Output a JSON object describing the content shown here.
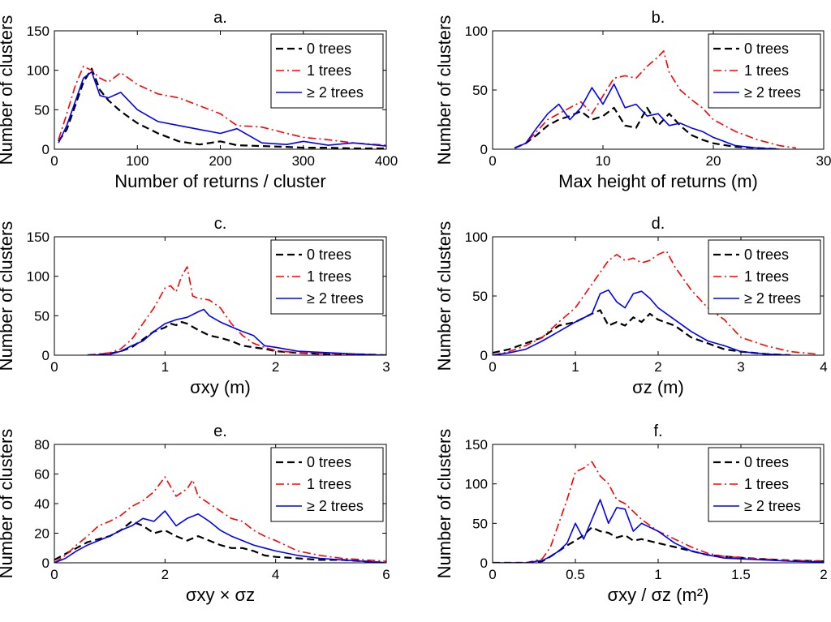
{
  "legend_labels": [
    "0 trees",
    "1 trees",
    "≥ 2 trees"
  ],
  "series_colors": {
    "zero": "#000000",
    "one": "#ff0000",
    "two": "#0000ff"
  },
  "chart_data": [
    {
      "type": "line",
      "title": "a.",
      "xlabel": "Number of returns / cluster",
      "ylabel": "Number of clusters",
      "xlim": [
        0,
        400
      ],
      "ylim": [
        0,
        150
      ],
      "xticks": [
        0,
        100,
        200,
        300,
        400
      ],
      "yticks": [
        0,
        50,
        100,
        150
      ],
      "xticklabels": [
        "0",
        "100",
        "200",
        "300",
        "400"
      ],
      "yticklabels": [
        "0",
        "50",
        "100",
        "150"
      ],
      "series": [
        {
          "name": "0 trees",
          "x": [
            5,
            15,
            25,
            35,
            45,
            55,
            65,
            80,
            100,
            125,
            150,
            175,
            200,
            220,
            250,
            280,
            300,
            330,
            360,
            400
          ],
          "values": [
            10,
            25,
            55,
            85,
            102,
            75,
            62,
            48,
            33,
            20,
            10,
            6,
            10,
            5,
            4,
            3,
            2,
            2,
            1,
            1
          ]
        },
        {
          "name": "1 trees",
          "x": [
            5,
            15,
            25,
            35,
            45,
            55,
            65,
            80,
            100,
            125,
            150,
            175,
            200,
            220,
            250,
            280,
            300,
            330,
            360,
            400
          ],
          "values": [
            12,
            45,
            80,
            105,
            100,
            90,
            85,
            97,
            82,
            70,
            65,
            55,
            45,
            30,
            28,
            20,
            15,
            12,
            8,
            5
          ]
        },
        {
          "name": "≥ 2 trees",
          "x": [
            5,
            15,
            25,
            35,
            45,
            55,
            65,
            80,
            100,
            125,
            150,
            175,
            200,
            220,
            250,
            280,
            300,
            330,
            360,
            400
          ],
          "values": [
            8,
            30,
            60,
            90,
            98,
            68,
            65,
            72,
            50,
            35,
            30,
            25,
            20,
            26,
            8,
            6,
            10,
            5,
            8,
            4
          ]
        }
      ]
    },
    {
      "type": "line",
      "title": "b.",
      "xlabel": "Max height of returns (m)",
      "ylabel": "Number of clusters",
      "xlim": [
        0,
        30
      ],
      "ylim": [
        0,
        100
      ],
      "xticks": [
        0,
        10,
        20,
        30
      ],
      "yticks": [
        0,
        50,
        100
      ],
      "xticklabels": [
        "0",
        "10",
        "20",
        "30"
      ],
      "yticklabels": [
        "0",
        "50",
        "100"
      ],
      "series": [
        {
          "name": "0 trees",
          "x": [
            2,
            3,
            4,
            5,
            6,
            7,
            8,
            9,
            10,
            11,
            12,
            13,
            14,
            15,
            16,
            17,
            18,
            19,
            20,
            22,
            24,
            26
          ],
          "values": [
            1,
            5,
            12,
            20,
            25,
            28,
            32,
            25,
            28,
            35,
            20,
            18,
            35,
            20,
            30,
            20,
            12,
            8,
            5,
            2,
            1,
            0
          ]
        },
        {
          "name": "1 trees",
          "x": [
            2,
            3,
            4,
            5,
            6,
            7,
            8,
            9,
            10,
            11,
            12,
            13,
            14,
            15,
            15.5,
            16,
            17,
            18,
            19,
            20,
            22,
            24,
            26,
            27.5
          ],
          "values": [
            1,
            5,
            15,
            25,
            30,
            35,
            40,
            30,
            45,
            60,
            62,
            60,
            70,
            78,
            83,
            65,
            50,
            42,
            35,
            25,
            15,
            8,
            3,
            1
          ]
        },
        {
          "name": "≥ 2 trees",
          "x": [
            2,
            3,
            4,
            5,
            6,
            7,
            8,
            9,
            10,
            11,
            12,
            13,
            14,
            15,
            16,
            17,
            18,
            19,
            20,
            22,
            24,
            26
          ],
          "values": [
            1,
            5,
            18,
            30,
            38,
            25,
            35,
            52,
            38,
            55,
            35,
            38,
            28,
            30,
            20,
            22,
            18,
            15,
            10,
            3,
            1,
            0
          ]
        }
      ]
    },
    {
      "type": "line",
      "title": "c.",
      "xlabel": "σxy (m)",
      "ylabel": "Number of clusters",
      "xlim": [
        0,
        3
      ],
      "ylim": [
        0,
        150
      ],
      "xticks": [
        0,
        1,
        2,
        3
      ],
      "yticks": [
        0,
        50,
        100,
        150
      ],
      "xticklabels": [
        "0",
        "1",
        "2",
        "3"
      ],
      "yticklabels": [
        "0",
        "50",
        "100",
        "150"
      ],
      "series": [
        {
          "name": "0 trees",
          "x": [
            0.3,
            0.5,
            0.6,
            0.7,
            0.8,
            0.9,
            1.0,
            1.05,
            1.1,
            1.15,
            1.2,
            1.3,
            1.4,
            1.5,
            1.6,
            1.7,
            1.8,
            1.9,
            2.0,
            2.2,
            2.5,
            2.8,
            3.0
          ],
          "values": [
            0,
            2,
            5,
            10,
            20,
            30,
            35,
            40,
            38,
            42,
            40,
            32,
            25,
            22,
            18,
            12,
            10,
            8,
            5,
            3,
            1,
            1,
            0
          ]
        },
        {
          "name": "1 trees",
          "x": [
            0.3,
            0.5,
            0.6,
            0.7,
            0.8,
            0.9,
            1.0,
            1.05,
            1.1,
            1.15,
            1.2,
            1.25,
            1.3,
            1.4,
            1.5,
            1.6,
            1.7,
            1.8,
            1.9,
            2.0,
            2.2,
            2.5,
            2.8,
            3.0
          ],
          "values": [
            0,
            3,
            8,
            20,
            40,
            60,
            85,
            88,
            80,
            100,
            112,
            75,
            72,
            70,
            60,
            40,
            25,
            15,
            10,
            6,
            3,
            2,
            1,
            0
          ]
        },
        {
          "name": "≥ 2 trees",
          "x": [
            0.3,
            0.5,
            0.6,
            0.7,
            0.8,
            0.9,
            1.0,
            1.1,
            1.2,
            1.3,
            1.35,
            1.4,
            1.5,
            1.6,
            1.7,
            1.8,
            1.9,
            2.0,
            2.2,
            2.5,
            2.8,
            3.0
          ],
          "values": [
            0,
            1,
            5,
            12,
            18,
            30,
            40,
            45,
            48,
            55,
            58,
            50,
            42,
            36,
            30,
            25,
            12,
            10,
            5,
            3,
            1,
            0
          ]
        }
      ]
    },
    {
      "type": "line",
      "title": "d.",
      "xlabel": "σz (m)",
      "ylabel": "Number of clusters",
      "xlim": [
        0,
        4
      ],
      "ylim": [
        0,
        100
      ],
      "xticks": [
        0,
        1,
        2,
        3,
        4
      ],
      "yticks": [
        0,
        50,
        100
      ],
      "xticklabels": [
        "0",
        "1",
        "2",
        "3",
        "4"
      ],
      "yticklabels": [
        "0",
        "50",
        "100"
      ],
      "series": [
        {
          "name": "0 trees",
          "x": [
            0,
            0.2,
            0.4,
            0.6,
            0.8,
            1.0,
            1.2,
            1.3,
            1.4,
            1.5,
            1.6,
            1.7,
            1.8,
            1.9,
            2.0,
            2.2,
            2.4,
            2.6,
            2.8,
            3.0,
            3.3,
            3.6
          ],
          "values": [
            2,
            5,
            10,
            15,
            25,
            28,
            35,
            38,
            25,
            28,
            25,
            32,
            28,
            35,
            30,
            25,
            15,
            10,
            5,
            3,
            1,
            0
          ]
        },
        {
          "name": "1 trees",
          "x": [
            0,
            0.2,
            0.4,
            0.6,
            0.8,
            1.0,
            1.2,
            1.3,
            1.4,
            1.5,
            1.6,
            1.7,
            1.8,
            1.9,
            2.0,
            2.1,
            2.2,
            2.4,
            2.6,
            2.8,
            3.0,
            3.3,
            3.6,
            3.9
          ],
          "values": [
            0,
            3,
            8,
            15,
            28,
            40,
            60,
            70,
            80,
            85,
            80,
            82,
            78,
            80,
            85,
            88,
            75,
            55,
            40,
            30,
            15,
            8,
            3,
            1
          ]
        },
        {
          "name": "≥ 2 trees",
          "x": [
            0,
            0.2,
            0.4,
            0.6,
            0.8,
            1.0,
            1.2,
            1.3,
            1.4,
            1.5,
            1.6,
            1.7,
            1.8,
            1.9,
            2.0,
            2.2,
            2.4,
            2.6,
            2.8,
            3.0,
            3.3,
            3.6
          ],
          "values": [
            0,
            2,
            5,
            12,
            20,
            28,
            35,
            52,
            55,
            45,
            40,
            52,
            54,
            48,
            40,
            30,
            20,
            12,
            8,
            3,
            1,
            0
          ]
        }
      ]
    },
    {
      "type": "line",
      "title": "e.",
      "xlabel": "σxy × σz",
      "ylabel": "Number of clusters",
      "xlim": [
        0,
        6
      ],
      "ylim": [
        0,
        80
      ],
      "xticks": [
        0,
        2,
        4,
        6
      ],
      "yticks": [
        0,
        20,
        40,
        60,
        80
      ],
      "xticklabels": [
        "0",
        "2",
        "4",
        "6"
      ],
      "yticklabels": [
        "0",
        "20",
        "40",
        "60",
        "80"
      ],
      "series": [
        {
          "name": "0 trees",
          "x": [
            0,
            0.2,
            0.4,
            0.6,
            0.8,
            1.0,
            1.2,
            1.4,
            1.6,
            1.8,
            2.0,
            2.2,
            2.4,
            2.6,
            2.8,
            3.0,
            3.2,
            3.4,
            3.6,
            3.8,
            4.0,
            4.4,
            4.8,
            5.2,
            5.6,
            6.0
          ],
          "values": [
            2,
            6,
            10,
            14,
            16,
            18,
            22,
            28,
            25,
            20,
            22,
            18,
            15,
            18,
            15,
            12,
            10,
            10,
            8,
            5,
            4,
            3,
            2,
            2,
            1,
            0
          ]
        },
        {
          "name": "1 trees",
          "x": [
            0,
            0.2,
            0.4,
            0.6,
            0.8,
            1.0,
            1.2,
            1.4,
            1.6,
            1.8,
            2.0,
            2.2,
            2.4,
            2.5,
            2.6,
            2.8,
            3.0,
            3.2,
            3.4,
            3.6,
            3.8,
            4.0,
            4.4,
            4.8,
            5.2,
            5.6,
            6.0
          ],
          "values": [
            0,
            5,
            12,
            18,
            25,
            28,
            32,
            38,
            42,
            48,
            58,
            45,
            50,
            56,
            45,
            40,
            35,
            30,
            28,
            22,
            18,
            15,
            8,
            5,
            3,
            2,
            1
          ]
        },
        {
          "name": "≥ 2 trees",
          "x": [
            0,
            0.2,
            0.4,
            0.6,
            0.8,
            1.0,
            1.2,
            1.4,
            1.6,
            1.8,
            2.0,
            2.2,
            2.4,
            2.6,
            2.8,
            3.0,
            3.2,
            3.4,
            3.6,
            3.8,
            4.0,
            4.4,
            4.8,
            5.2,
            5.6,
            6.0
          ],
          "values": [
            0,
            3,
            8,
            12,
            15,
            18,
            22,
            25,
            30,
            28,
            35,
            25,
            30,
            33,
            28,
            22,
            18,
            15,
            12,
            10,
            8,
            5,
            3,
            2,
            1,
            0
          ]
        }
      ]
    },
    {
      "type": "line",
      "title": "f.",
      "xlabel": "σxy / σz (m²)",
      "ylabel": "Number of clusters",
      "xlim": [
        0,
        2
      ],
      "ylim": [
        0,
        150
      ],
      "xticks": [
        0,
        0.5,
        1,
        1.5,
        2
      ],
      "yticks": [
        0,
        50,
        100,
        150
      ],
      "xticklabels": [
        "0",
        "0.5",
        "1",
        "1.5",
        "2"
      ],
      "yticklabels": [
        "0",
        "50",
        "100",
        "150"
      ],
      "series": [
        {
          "name": "0 trees",
          "x": [
            0,
            0.2,
            0.3,
            0.35,
            0.4,
            0.45,
            0.5,
            0.55,
            0.6,
            0.65,
            0.7,
            0.75,
            0.8,
            0.85,
            0.9,
            1.0,
            1.1,
            1.2,
            1.3,
            1.4,
            1.6,
            1.8,
            2.0
          ],
          "values": [
            0,
            0,
            2,
            8,
            15,
            22,
            28,
            35,
            45,
            40,
            38,
            32,
            35,
            28,
            30,
            25,
            20,
            15,
            10,
            8,
            5,
            3,
            2
          ]
        },
        {
          "name": "1 trees",
          "x": [
            0,
            0.2,
            0.3,
            0.35,
            0.4,
            0.45,
            0.5,
            0.55,
            0.6,
            0.65,
            0.7,
            0.75,
            0.8,
            0.85,
            0.9,
            1.0,
            1.1,
            1.2,
            1.3,
            1.4,
            1.6,
            1.8,
            2.0
          ],
          "values": [
            0,
            0,
            5,
            20,
            50,
            80,
            115,
            120,
            128,
            110,
            100,
            80,
            75,
            65,
            55,
            40,
            30,
            20,
            12,
            8,
            5,
            3,
            2
          ]
        },
        {
          "name": "≥ 2 trees",
          "x": [
            0,
            0.2,
            0.3,
            0.35,
            0.4,
            0.45,
            0.5,
            0.55,
            0.6,
            0.65,
            0.7,
            0.75,
            0.8,
            0.85,
            0.9,
            1.0,
            1.1,
            1.2,
            1.3,
            1.4,
            1.6,
            1.8,
            2.0
          ],
          "values": [
            0,
            0,
            3,
            8,
            15,
            25,
            50,
            30,
            55,
            80,
            50,
            70,
            68,
            40,
            50,
            40,
            25,
            15,
            10,
            6,
            4,
            2,
            1
          ]
        }
      ]
    }
  ]
}
